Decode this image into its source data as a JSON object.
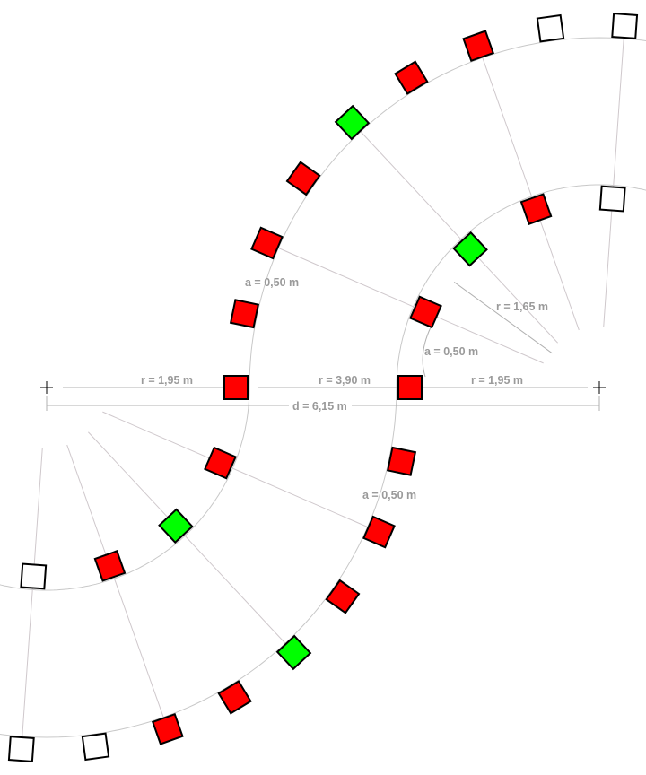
{
  "labels": {
    "r_left": "r = 1,95 m",
    "r_middle": "r = 3,90 m",
    "r_right": "r = 1,95 m",
    "d_total": "d = 6,15 m",
    "a_upper_left": "a = 0,50 m",
    "r_upper_right": "r = 1,65 m",
    "a_center": "a = 0,50 m",
    "a_lower": "a = 0,50 m"
  },
  "colors": {
    "red": "#ff0000",
    "green": "#00ff00",
    "white": "#ffffff",
    "line": "#c8c8c8",
    "dim": "#b0b0b0"
  },
  "tracks": {
    "inner_squares": [
      "red",
      "red",
      "green",
      "red",
      "white"
    ],
    "outer_squares": [
      "red",
      "red",
      "red",
      "green",
      "red",
      "red",
      "white",
      "white"
    ]
  }
}
